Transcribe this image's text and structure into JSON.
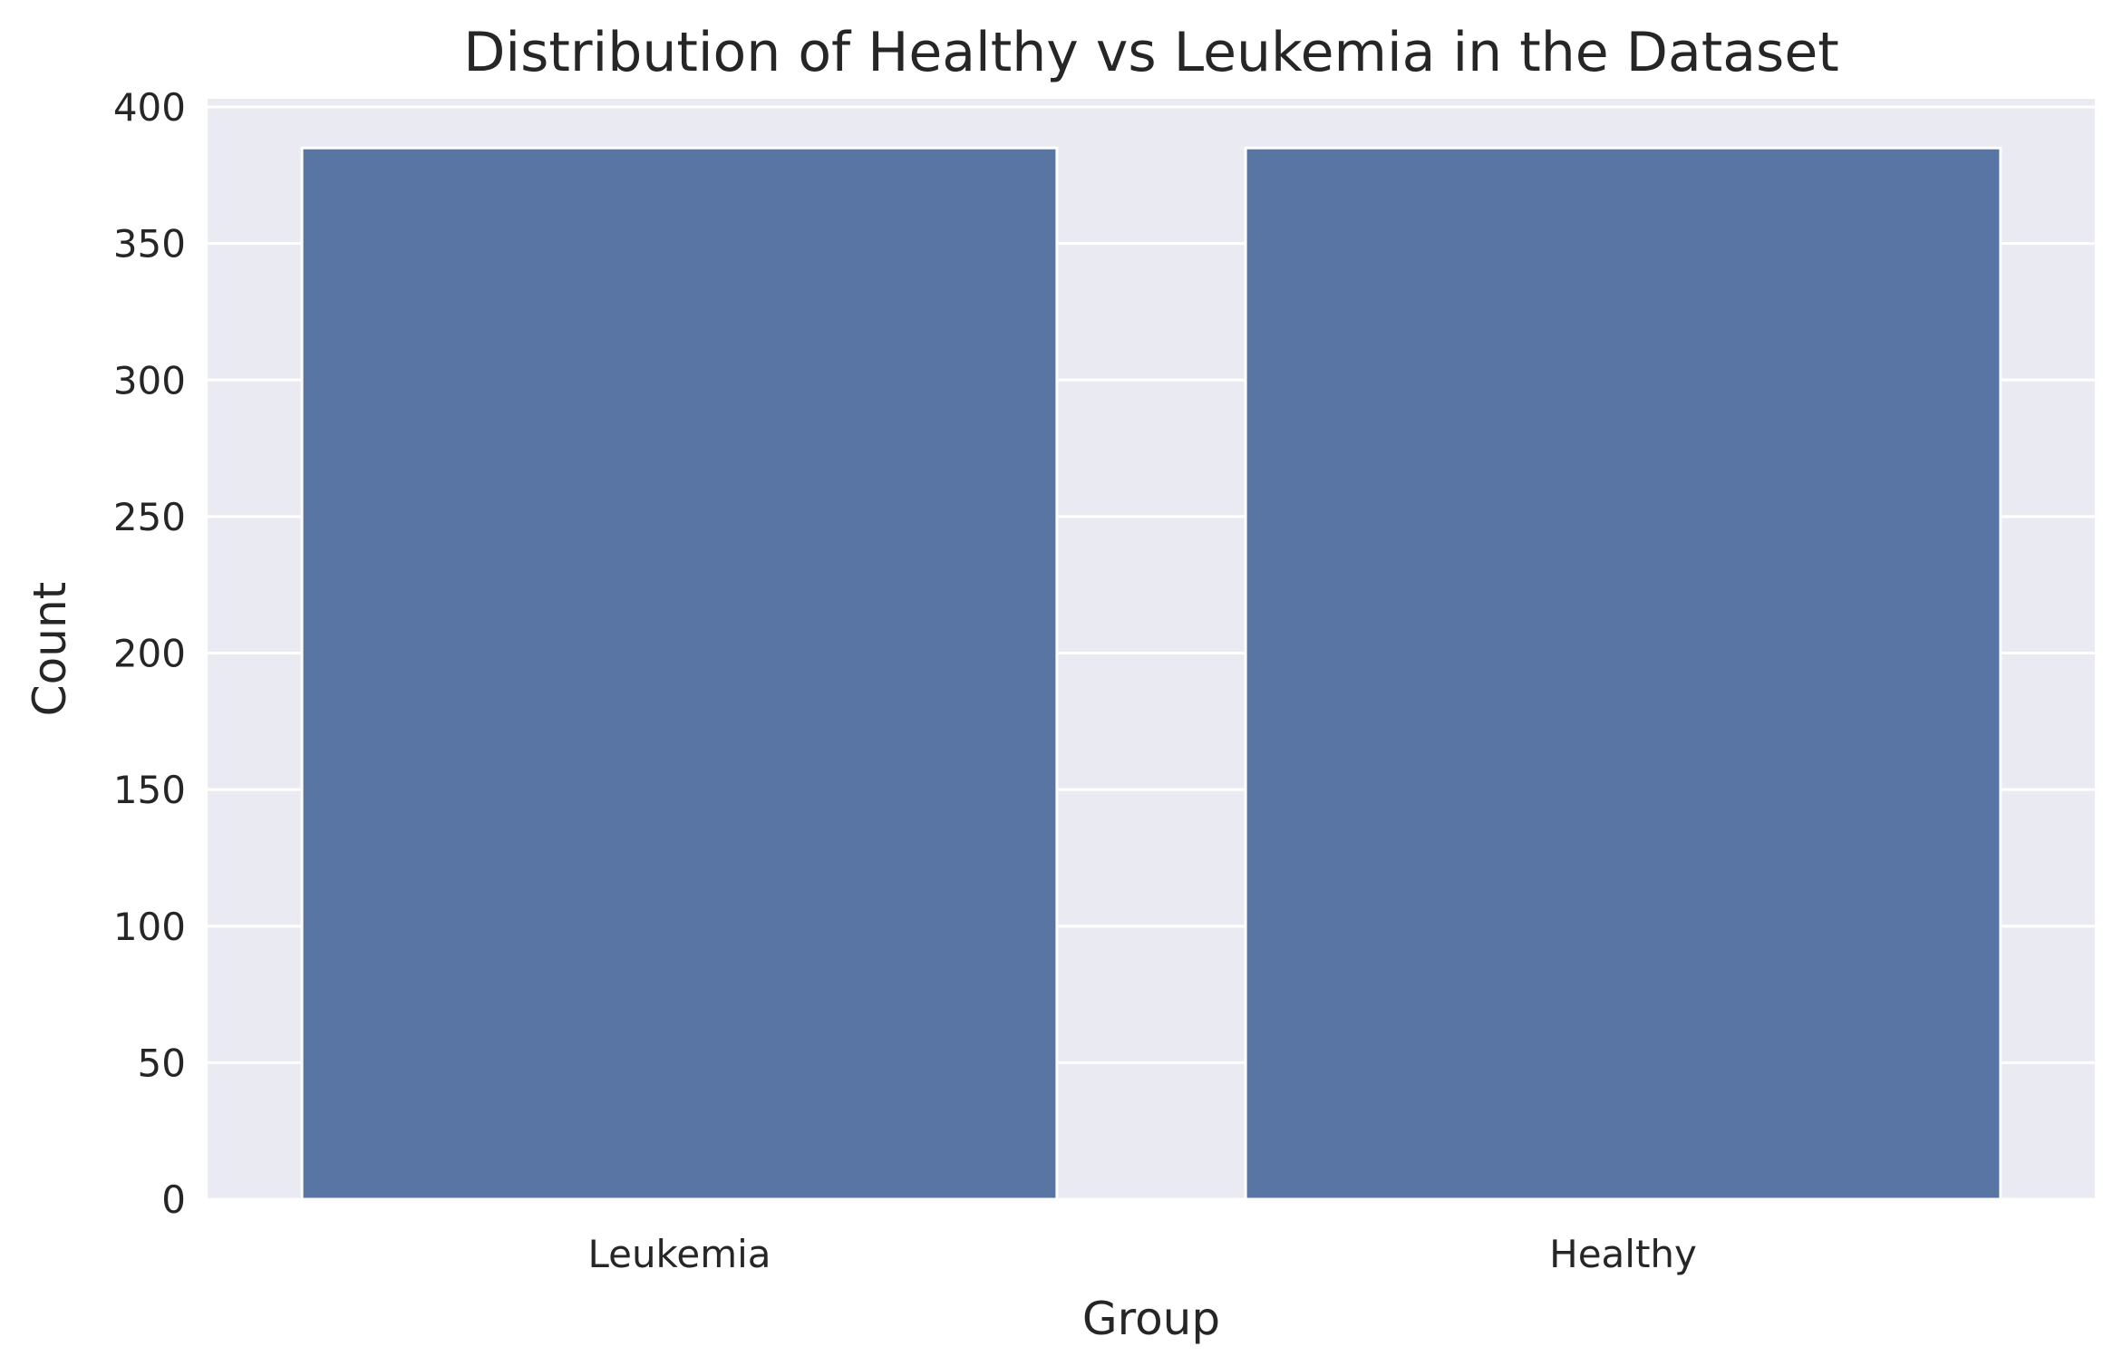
{
  "chart_data": {
    "type": "bar",
    "title": "Distribution of Healthy vs Leukemia in the Dataset",
    "xlabel": "Group",
    "ylabel": "Count",
    "categories": [
      "Leukemia",
      "Healthy"
    ],
    "values": [
      385,
      385
    ],
    "ylim": [
      0,
      403
    ],
    "yticks": [
      0,
      50,
      100,
      150,
      200,
      250,
      300,
      350,
      400
    ],
    "grid": true,
    "colors": {
      "bar": "#5975a4",
      "plot_background": "#eaeaf2",
      "grid": "#ffffff",
      "text": "#262626"
    }
  }
}
